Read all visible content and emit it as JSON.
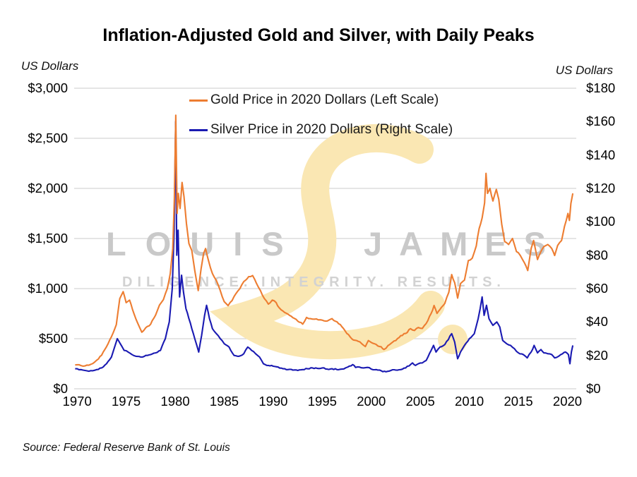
{
  "header": {
    "title": "Inflation-Adjusted Gold and Silver, with Daily Peaks"
  },
  "axes": {
    "left_unit": "US Dollars",
    "right_unit": "US Dollars",
    "left_tick_labels": [
      "$3,000",
      "$2,500",
      "$2,000",
      "$1,500",
      "$1,000",
      "$500",
      "$0"
    ],
    "left_tick_values": [
      3000,
      2500,
      2000,
      1500,
      1000,
      500,
      0
    ],
    "right_tick_labels": [
      "$180",
      "$160",
      "$140",
      "$120",
      "$100",
      "$80",
      "$60",
      "$40",
      "$20",
      "$0"
    ],
    "right_tick_values": [
      180,
      160,
      140,
      120,
      100,
      80,
      60,
      40,
      20,
      0
    ],
    "x_tick_labels": [
      "1970",
      "1975",
      "1980",
      "1985",
      "1990",
      "1995",
      "2000",
      "2005",
      "2010",
      "2015",
      "2020"
    ],
    "x_tick_values": [
      1970,
      1975,
      1980,
      1985,
      1990,
      1995,
      2000,
      2005,
      2010,
      2015,
      2020
    ]
  },
  "source": "Source: Federal Reserve Bank of St. Louis",
  "watermark": {
    "word_left": "LOUIS",
    "word_right": "JAMES",
    "tagline": "DILIGENCE. INTEGRITY. RESULTS.",
    "script_glyph": "L",
    "text_color": "#c9c9c9",
    "tagline_color": "#d2d2d2",
    "script_color": "#FAE7B3"
  },
  "colors": {
    "gold": "#ED7D31",
    "silver": "#1A1AB2",
    "grid": "#d5d5d5",
    "title": "#000000"
  },
  "chart_data": {
    "type": "line",
    "title": "Inflation-Adjusted Gold and Silver, with Daily Peaks",
    "x_range": [
      1969.7,
      2020.9
    ],
    "x_ticks": [
      1970,
      1975,
      1980,
      1985,
      1990,
      1995,
      2000,
      2005,
      2010,
      2015,
      2020
    ],
    "left_axis": {
      "label": "US Dollars",
      "range": [
        0,
        3000
      ],
      "ticks": [
        0,
        500,
        1000,
        1500,
        2000,
        2500,
        3000
      ]
    },
    "right_axis": {
      "label": "US Dollars",
      "range": [
        0,
        180
      ],
      "ticks": [
        0,
        20,
        40,
        60,
        80,
        100,
        120,
        140,
        160,
        180
      ]
    },
    "grid": "horizontal",
    "legend_position": "top-inside",
    "series": [
      {
        "name": "Gold Price in 2020 Dollars (Left Scale)",
        "axis": "left",
        "color": "#ED7D31",
        "points": [
          [
            1969.8,
            238
          ],
          [
            1970,
            240
          ],
          [
            1970.4,
            232
          ],
          [
            1970.8,
            228
          ],
          [
            1971.2,
            235
          ],
          [
            1971.6,
            252
          ],
          [
            1972,
            285
          ],
          [
            1972.5,
            335
          ],
          [
            1973,
            420
          ],
          [
            1973.5,
            520
          ],
          [
            1974,
            640
          ],
          [
            1974.35,
            900
          ],
          [
            1974.7,
            970
          ],
          [
            1975,
            860
          ],
          [
            1975.35,
            885
          ],
          [
            1975.8,
            750
          ],
          [
            1976.2,
            650
          ],
          [
            1976.6,
            565
          ],
          [
            1977,
            610
          ],
          [
            1977.5,
            645
          ],
          [
            1978,
            735
          ],
          [
            1978.4,
            835
          ],
          [
            1978.8,
            890
          ],
          [
            1979.2,
            1000
          ],
          [
            1979.5,
            1150
          ],
          [
            1979.75,
            1400
          ],
          [
            1979.92,
            1900
          ],
          [
            1980.06,
            2730
          ],
          [
            1980.2,
            1750
          ],
          [
            1980.32,
            1950
          ],
          [
            1980.5,
            1800
          ],
          [
            1980.7,
            2060
          ],
          [
            1980.9,
            1920
          ],
          [
            1981.15,
            1650
          ],
          [
            1981.4,
            1450
          ],
          [
            1981.7,
            1380
          ],
          [
            1982,
            1180
          ],
          [
            1982.35,
            980
          ],
          [
            1982.65,
            1200
          ],
          [
            1982.9,
            1350
          ],
          [
            1983.1,
            1400
          ],
          [
            1983.4,
            1280
          ],
          [
            1983.8,
            1150
          ],
          [
            1984.2,
            1080
          ],
          [
            1984.6,
            980
          ],
          [
            1985,
            870
          ],
          [
            1985.4,
            830
          ],
          [
            1985.8,
            880
          ],
          [
            1986.2,
            950
          ],
          [
            1986.6,
            1000
          ],
          [
            1987,
            1070
          ],
          [
            1987.5,
            1120
          ],
          [
            1987.9,
            1130
          ],
          [
            1988.3,
            1050
          ],
          [
            1988.7,
            980
          ],
          [
            1989.1,
            900
          ],
          [
            1989.5,
            845
          ],
          [
            1989.9,
            885
          ],
          [
            1990.3,
            860
          ],
          [
            1990.6,
            810
          ],
          [
            1991,
            775
          ],
          [
            1991.5,
            745
          ],
          [
            1992,
            710
          ],
          [
            1992.5,
            675
          ],
          [
            1993,
            645
          ],
          [
            1993.4,
            712
          ],
          [
            1993.8,
            700
          ],
          [
            1994.2,
            695
          ],
          [
            1994.6,
            688
          ],
          [
            1995,
            685
          ],
          [
            1995.5,
            676
          ],
          [
            1996,
            700
          ],
          [
            1996.5,
            668
          ],
          [
            1997,
            620
          ],
          [
            1997.5,
            552
          ],
          [
            1998,
            500
          ],
          [
            1998.5,
            482
          ],
          [
            1999,
            452
          ],
          [
            1999.4,
            422
          ],
          [
            1999.7,
            482
          ],
          [
            2000,
            462
          ],
          [
            2000.5,
            442
          ],
          [
            2001,
            420
          ],
          [
            2001.3,
            392
          ],
          [
            2001.7,
            432
          ],
          [
            2002,
            452
          ],
          [
            2002.5,
            482
          ],
          [
            2003,
            530
          ],
          [
            2003.5,
            552
          ],
          [
            2004,
            600
          ],
          [
            2004.4,
            582
          ],
          [
            2004.8,
            612
          ],
          [
            2005.2,
            602
          ],
          [
            2005.6,
            652
          ],
          [
            2006.1,
            752
          ],
          [
            2006.4,
            832
          ],
          [
            2006.7,
            752
          ],
          [
            2007,
            792
          ],
          [
            2007.5,
            852
          ],
          [
            2007.9,
            962
          ],
          [
            2008.2,
            1140
          ],
          [
            2008.5,
            1060
          ],
          [
            2008.8,
            905
          ],
          [
            2009.1,
            1050
          ],
          [
            2009.5,
            1085
          ],
          [
            2009.9,
            1280
          ],
          [
            2010.3,
            1305
          ],
          [
            2010.7,
            1425
          ],
          [
            2011,
            1600
          ],
          [
            2011.3,
            1705
          ],
          [
            2011.55,
            1855
          ],
          [
            2011.7,
            2150
          ],
          [
            2011.85,
            1950
          ],
          [
            2012.1,
            2000
          ],
          [
            2012.4,
            1875
          ],
          [
            2012.75,
            1990
          ],
          [
            2013,
            1890
          ],
          [
            2013.3,
            1640
          ],
          [
            2013.6,
            1470
          ],
          [
            2014,
            1440
          ],
          [
            2014.4,
            1500
          ],
          [
            2014.8,
            1370
          ],
          [
            2015.2,
            1330
          ],
          [
            2015.6,
            1260
          ],
          [
            2015.95,
            1180
          ],
          [
            2016.3,
            1400
          ],
          [
            2016.55,
            1480
          ],
          [
            2016.95,
            1290
          ],
          [
            2017.3,
            1370
          ],
          [
            2017.6,
            1420
          ],
          [
            2018,
            1440
          ],
          [
            2018.4,
            1400
          ],
          [
            2018.7,
            1330
          ],
          [
            2019,
            1430
          ],
          [
            2019.4,
            1480
          ],
          [
            2019.7,
            1620
          ],
          [
            2020.05,
            1750
          ],
          [
            2020.2,
            1680
          ],
          [
            2020.35,
            1850
          ],
          [
            2020.55,
            1950
          ]
        ]
      },
      {
        "name": "Silver Price in 2020 Dollars (Right Scale)",
        "axis": "right",
        "color": "#1A1AB2",
        "points": [
          [
            1969.8,
            12
          ],
          [
            1970,
            12
          ],
          [
            1970.4,
            11.5
          ],
          [
            1970.8,
            11
          ],
          [
            1971.2,
            10.5
          ],
          [
            1971.6,
            10.8
          ],
          [
            1972,
            11.5
          ],
          [
            1972.5,
            12.5
          ],
          [
            1973,
            15
          ],
          [
            1973.5,
            19
          ],
          [
            1974.1,
            30
          ],
          [
            1974.4,
            27
          ],
          [
            1974.8,
            23
          ],
          [
            1975.2,
            22
          ],
          [
            1975.6,
            20.5
          ],
          [
            1976,
            19.5
          ],
          [
            1976.5,
            19
          ],
          [
            1977,
            20
          ],
          [
            1977.5,
            20.5
          ],
          [
            1978,
            21.5
          ],
          [
            1978.5,
            23
          ],
          [
            1979,
            30
          ],
          [
            1979.4,
            40
          ],
          [
            1979.7,
            60
          ],
          [
            1979.9,
            95
          ],
          [
            1980.05,
            160
          ],
          [
            1980.16,
            80
          ],
          [
            1980.3,
            95
          ],
          [
            1980.45,
            55
          ],
          [
            1980.65,
            68
          ],
          [
            1980.85,
            58
          ],
          [
            1981.1,
            48
          ],
          [
            1981.4,
            42
          ],
          [
            1981.7,
            36
          ],
          [
            1982,
            30
          ],
          [
            1982.4,
            22
          ],
          [
            1982.7,
            32
          ],
          [
            1983,
            44
          ],
          [
            1983.2,
            50
          ],
          [
            1983.5,
            42
          ],
          [
            1983.8,
            36
          ],
          [
            1984.2,
            33
          ],
          [
            1984.6,
            30
          ],
          [
            1985,
            27
          ],
          [
            1985.5,
            25
          ],
          [
            1986,
            20
          ],
          [
            1986.5,
            19.5
          ],
          [
            1987,
            21
          ],
          [
            1987.4,
            25
          ],
          [
            1987.8,
            23
          ],
          [
            1988.2,
            21
          ],
          [
            1988.6,
            19
          ],
          [
            1989,
            15
          ],
          [
            1989.5,
            14
          ],
          [
            1990,
            13.5
          ],
          [
            1990.5,
            13
          ],
          [
            1991,
            12
          ],
          [
            1991.5,
            11.5
          ],
          [
            1992,
            11.2
          ],
          [
            1992.5,
            11
          ],
          [
            1993,
            11.5
          ],
          [
            1993.5,
            12
          ],
          [
            1994,
            12.5
          ],
          [
            1994.5,
            12.2
          ],
          [
            1995,
            12.5
          ],
          [
            1995.5,
            11.8
          ],
          [
            1996,
            12
          ],
          [
            1996.5,
            11.5
          ],
          [
            1997,
            11.8
          ],
          [
            1997.6,
            13
          ],
          [
            1998.1,
            14.5
          ],
          [
            1998.4,
            12.8
          ],
          [
            1998.8,
            13
          ],
          [
            1999.2,
            12.5
          ],
          [
            1999.6,
            12.8
          ],
          [
            2000,
            11.8
          ],
          [
            2000.5,
            11.5
          ],
          [
            2001,
            10.8
          ],
          [
            2001.5,
            10.2
          ],
          [
            2002,
            11
          ],
          [
            2002.5,
            11.2
          ],
          [
            2003,
            11.5
          ],
          [
            2003.5,
            12.5
          ],
          [
            2004.2,
            15.5
          ],
          [
            2004.5,
            14
          ],
          [
            2004.8,
            15
          ],
          [
            2005.2,
            15.5
          ],
          [
            2005.6,
            17
          ],
          [
            2006.1,
            23
          ],
          [
            2006.35,
            26
          ],
          [
            2006.6,
            22
          ],
          [
            2007,
            25
          ],
          [
            2007.5,
            26.5
          ],
          [
            2008.2,
            33
          ],
          [
            2008.5,
            28
          ],
          [
            2008.8,
            18
          ],
          [
            2009.1,
            22
          ],
          [
            2009.5,
            26
          ],
          [
            2010,
            30
          ],
          [
            2010.5,
            33
          ],
          [
            2010.9,
            42
          ],
          [
            2011.1,
            48
          ],
          [
            2011.3,
            55
          ],
          [
            2011.5,
            44
          ],
          [
            2011.75,
            50
          ],
          [
            2012,
            42
          ],
          [
            2012.4,
            38
          ],
          [
            2012.8,
            40
          ],
          [
            2013.1,
            37
          ],
          [
            2013.4,
            29
          ],
          [
            2013.8,
            27
          ],
          [
            2014.2,
            26
          ],
          [
            2014.6,
            24
          ],
          [
            2015,
            21.5
          ],
          [
            2015.5,
            20.5
          ],
          [
            2015.9,
            18.5
          ],
          [
            2016.3,
            22
          ],
          [
            2016.6,
            26
          ],
          [
            2016.95,
            21.5
          ],
          [
            2017.3,
            23.5
          ],
          [
            2017.6,
            21.5
          ],
          [
            2018,
            21
          ],
          [
            2018.4,
            20.5
          ],
          [
            2018.7,
            18.5
          ],
          [
            2019.1,
            19.5
          ],
          [
            2019.5,
            21
          ],
          [
            2019.8,
            22
          ],
          [
            2020.1,
            20.5
          ],
          [
            2020.25,
            15
          ],
          [
            2020.4,
            22
          ],
          [
            2020.55,
            26
          ]
        ]
      }
    ]
  }
}
